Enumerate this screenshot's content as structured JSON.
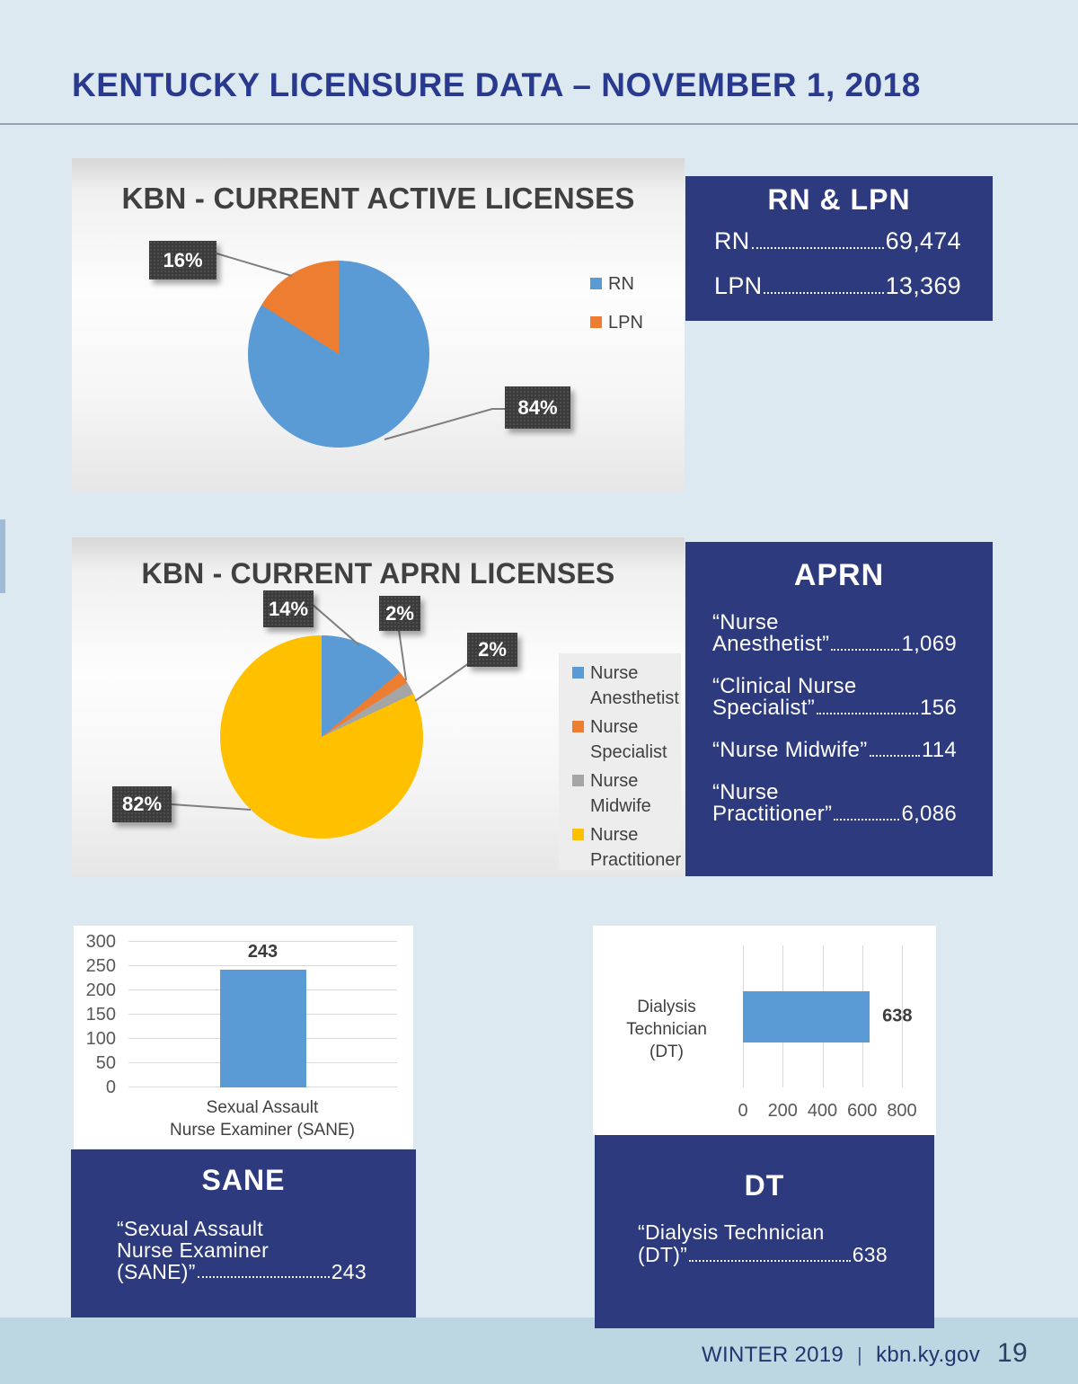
{
  "header": {
    "title": "KENTUCKY LICENSURE DATA – NOVEMBER 1, 2018"
  },
  "colors": {
    "page_bg": "#dde9f1",
    "band": "#bcd7e2",
    "navy": "#2d3b7e",
    "header_blue": "#293a8e",
    "blue": "#5b9bd5",
    "orange": "#ed7d31",
    "gray": "#a5a5a5",
    "yellow": "#ffc000",
    "label_box": "#3b3b3b",
    "chart_text": "#404040",
    "tick_text": "#595959",
    "divider": "#7f8aa3"
  },
  "chart_data": [
    {
      "type": "pie",
      "title": "KBN - CURRENT ACTIVE LICENSES",
      "legend_position": "right",
      "slices": [
        {
          "label": "RN",
          "value_pct": 84,
          "color": "#5b9bd5",
          "data_label": "84%"
        },
        {
          "label": "LPN",
          "value_pct": 16,
          "color": "#ed7d31",
          "data_label": "16%"
        }
      ]
    },
    {
      "type": "pie",
      "title": "KBN - CURRENT APRN LICENSES",
      "legend_position": "right",
      "slices": [
        {
          "label": "Nurse Anesthetist",
          "value_pct": 14,
          "color": "#5b9bd5",
          "data_label": "14%"
        },
        {
          "label": "Nurse Specialist",
          "value_pct": 2,
          "color": "#ed7d31",
          "data_label": "2%"
        },
        {
          "label": "Nurse Midwife",
          "value_pct": 2,
          "color": "#a5a5a5",
          "data_label": "2%"
        },
        {
          "label": "Nurse Practitioner",
          "value_pct": 82,
          "color": "#ffc000",
          "data_label": "82%"
        }
      ]
    },
    {
      "type": "bar",
      "orientation": "vertical",
      "categories": [
        "Sexual Assault Nurse Examiner (SANE)"
      ],
      "category_lines": [
        "Sexual Assault",
        "Nurse Examiner (SANE)"
      ],
      "values": [
        243
      ],
      "data_labels": [
        "243"
      ],
      "bar_color": "#5b9bd5",
      "ylim": [
        0,
        300
      ],
      "yticks": [
        0,
        50,
        100,
        150,
        200,
        250,
        300
      ],
      "grid": true
    },
    {
      "type": "bar",
      "orientation": "horizontal",
      "categories": [
        "Dialysis Technician (DT)"
      ],
      "category_lines": [
        "Dialysis Technician",
        "(DT)"
      ],
      "values": [
        638
      ],
      "data_labels": [
        "638"
      ],
      "bar_color": "#5b9bd5",
      "xlim": [
        0,
        800
      ],
      "xticks": [
        0,
        200,
        400,
        600,
        800
      ],
      "grid": true
    }
  ],
  "info_boxes": [
    {
      "title": "RN & LPN",
      "entries": [
        {
          "lines": [
            "RN"
          ],
          "value": "69,474"
        },
        {
          "lines": [
            "LPN"
          ],
          "value": "13,369"
        }
      ]
    },
    {
      "title": "APRN",
      "entries": [
        {
          "lines": [
            "“Nurse",
            "Anesthetist”"
          ],
          "value": "1,069"
        },
        {
          "lines": [
            "“Clinical Nurse",
            "Specialist”"
          ],
          "value": "156"
        },
        {
          "lines": [
            "“Nurse Midwife”"
          ],
          "value": "114"
        },
        {
          "lines": [
            "“Nurse",
            "Practitioner”"
          ],
          "value": "6,086"
        }
      ]
    },
    {
      "title": "SANE",
      "entries": [
        {
          "lines": [
            "“Sexual Assault",
            "Nurse Examiner",
            "(SANE)”"
          ],
          "value": "243"
        }
      ]
    },
    {
      "title": "DT",
      "entries": [
        {
          "lines": [
            "“Dialysis Technician",
            "(DT)”"
          ],
          "value": "638"
        }
      ]
    }
  ],
  "footer": {
    "issue": "WINTER 2019",
    "separator": "|",
    "site": "kbn.ky.gov",
    "page_number": "19"
  }
}
